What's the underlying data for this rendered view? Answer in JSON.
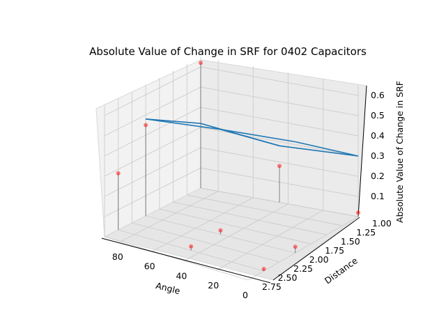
{
  "chart_data": {
    "type": "3d-wireframe-scatter",
    "title": "Absolute Value of Change in SRF for 0402 Capacitors",
    "xlabel": "Angle",
    "ylabel": "Distance",
    "zlabel": "Absolute Value of Change in SRF",
    "x_ticks": [
      "80",
      "60",
      "40",
      "20",
      "0"
    ],
    "y_ticks": [
      "1.00",
      "1.25",
      "1.50",
      "1.75",
      "2.00",
      "2.25",
      "2.50",
      "2.75"
    ],
    "z_ticks": [
      "0.1",
      "0.2",
      "0.3",
      "0.4",
      "0.5",
      "0.6"
    ],
    "grid": true,
    "wireframe_color": "#1f77b4",
    "scatter_color": "#ff0000",
    "stem_color": "#555555",
    "wireframe_grid": {
      "angles": [
        0,
        45,
        90
      ],
      "distances": [
        1,
        2
      ],
      "z": [
        [
          0.3,
          0.55
        ],
        [
          0.28,
          0.52
        ],
        [
          0.32,
          0.48
        ]
      ]
    },
    "points": [
      {
        "angle": 0,
        "distance": 1,
        "z": 0.02
      },
      {
        "angle": 0,
        "distance": 2,
        "z": 0.03
      },
      {
        "angle": 45,
        "distance": 1,
        "z": 0.18
      },
      {
        "angle": 45,
        "distance": 2,
        "z": 0.02
      },
      {
        "angle": 90,
        "distance": 1,
        "z": 0.62
      },
      {
        "angle": 90,
        "distance": 2,
        "z": 0.45
      },
      {
        "angle": 90,
        "distance": 2.5,
        "z": 0.28
      },
      {
        "angle": 45,
        "distance": 2.5,
        "z": 0.02
      },
      {
        "angle": 0,
        "distance": 2.5,
        "z": 0.01
      }
    ]
  }
}
